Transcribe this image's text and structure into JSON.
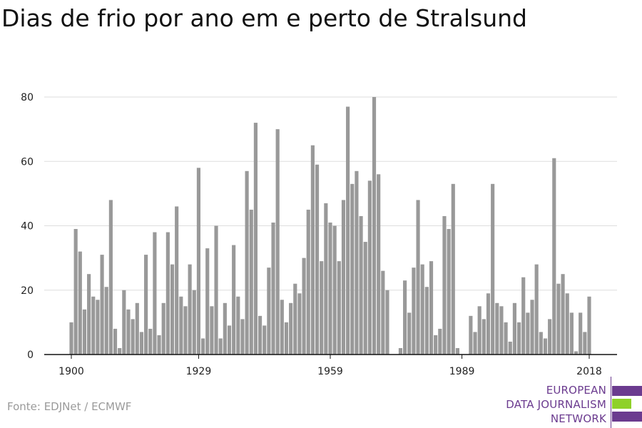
{
  "title": "Dias de frio por ano em e perto de Stralsund",
  "source": "Fonte: EDJNet / ECMWF",
  "logo": {
    "line1": "EUROPEAN",
    "line2": "DATA JOURNALISM",
    "line3": "NETWORK",
    "color_purple": "#6b3b8f",
    "color_green": "#8fd12a"
  },
  "chart_data": {
    "type": "bar",
    "x": [
      1900,
      1901,
      1902,
      1903,
      1904,
      1905,
      1906,
      1907,
      1908,
      1909,
      1910,
      1911,
      1912,
      1913,
      1914,
      1915,
      1916,
      1917,
      1918,
      1919,
      1920,
      1921,
      1922,
      1923,
      1924,
      1925,
      1926,
      1927,
      1928,
      1929,
      1930,
      1931,
      1932,
      1933,
      1934,
      1935,
      1936,
      1937,
      1938,
      1939,
      1940,
      1941,
      1942,
      1943,
      1944,
      1945,
      1946,
      1947,
      1948,
      1949,
      1950,
      1951,
      1952,
      1953,
      1954,
      1955,
      1956,
      1957,
      1958,
      1959,
      1960,
      1961,
      1962,
      1963,
      1964,
      1965,
      1966,
      1967,
      1968,
      1969,
      1970,
      1971,
      1972,
      1973,
      1974,
      1975,
      1976,
      1977,
      1978,
      1979,
      1980,
      1981,
      1982,
      1983,
      1984,
      1985,
      1986,
      1987,
      1988,
      1989,
      1990,
      1991,
      1992,
      1993,
      1994,
      1995,
      1996,
      1997,
      1998,
      1999,
      2000,
      2001,
      2002,
      2003,
      2004,
      2005,
      2006,
      2007,
      2008,
      2009,
      2010,
      2011,
      2012,
      2013,
      2014,
      2015,
      2016,
      2017,
      2018
    ],
    "values": [
      10,
      39,
      32,
      14,
      25,
      18,
      17,
      31,
      21,
      48,
      8,
      2,
      20,
      14,
      11,
      16,
      7,
      31,
      8,
      38,
      6,
      16,
      38,
      28,
      46,
      18,
      15,
      28,
      20,
      58,
      5,
      33,
      15,
      40,
      5,
      16,
      9,
      34,
      18,
      11,
      57,
      45,
      72,
      12,
      9,
      27,
      41,
      70,
      17,
      10,
      16,
      22,
      19,
      30,
      45,
      65,
      59,
      29,
      47,
      41,
      40,
      29,
      48,
      77,
      53,
      57,
      43,
      35,
      54,
      80,
      56,
      26,
      20,
      0,
      0,
      2,
      23,
      13,
      27,
      48,
      28,
      21,
      29,
      6,
      8,
      43,
      39,
      53,
      2,
      0,
      0,
      12,
      7,
      15,
      11,
      19,
      53,
      16,
      15,
      10,
      4,
      16,
      10,
      24,
      13,
      17,
      28,
      7,
      5,
      11,
      61,
      22,
      25,
      19,
      13,
      1,
      13,
      7,
      18
    ],
    "xticks": [
      "1900",
      "1929",
      "1959",
      "1989",
      "2018"
    ],
    "xtick_values": [
      1900,
      1929,
      1959,
      1989,
      2018
    ],
    "yticks": [
      "0",
      "20",
      "40",
      "60",
      "80"
    ],
    "ylim": [
      0,
      80
    ],
    "xlim": [
      1900,
      2018
    ],
    "bar_color": "#999999",
    "grid": true,
    "xlabel": "",
    "ylabel": ""
  }
}
